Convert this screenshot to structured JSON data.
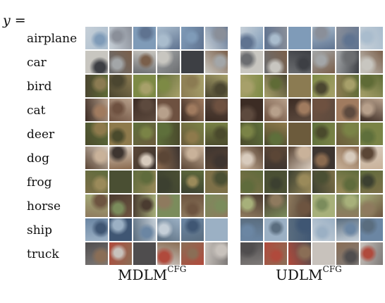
{
  "figure": {
    "y_symbol": "y",
    "equals": "=",
    "classes": [
      "airplane",
      "car",
      "bird",
      "cat",
      "deer",
      "dog",
      "frog",
      "horse",
      "ship",
      "truck"
    ],
    "panels": [
      {
        "name": "MDLM",
        "superscript": "CFG"
      },
      {
        "name": "UDLM",
        "superscript": "CFG"
      }
    ],
    "class_palettes": {
      "airplane": [
        "#7f9bb8",
        "#a9bccd",
        "#5f7390",
        "#c7d0d8",
        "#8a8f99"
      ],
      "car": [
        "#6b6d70",
        "#a3a6a8",
        "#3d3f44",
        "#c8c6c0",
        "#7a5f4a"
      ],
      "bird": [
        "#7d8a45",
        "#5f6b36",
        "#a7a06a",
        "#4b4630",
        "#8b7b52"
      ],
      "cat": [
        "#6e5140",
        "#a07b5f",
        "#3c2c24",
        "#b7a08b",
        "#5d4a3e"
      ],
      "deer": [
        "#5e6f3b",
        "#7a8346",
        "#4a4a2c",
        "#8e7a4c",
        "#6c5b3c"
      ],
      "dog": [
        "#8a6a4f",
        "#c9b29a",
        "#5b4636",
        "#d8cbbd",
        "#3e3530"
      ],
      "frog": [
        "#5f6b3c",
        "#7d7048",
        "#4a4f33",
        "#9a8a5a",
        "#3c4030"
      ],
      "horse": [
        "#6d5440",
        "#8e7a5e",
        "#4a3b30",
        "#a7b07a",
        "#7b8c5c"
      ],
      "ship": [
        "#6b86a3",
        "#9bb0c4",
        "#3f5673",
        "#c5cfd8",
        "#5a6d7f"
      ],
      "truck": [
        "#7e7a78",
        "#b04a3c",
        "#4f4d4e",
        "#c8c2bc",
        "#8a6e56"
      ]
    }
  }
}
